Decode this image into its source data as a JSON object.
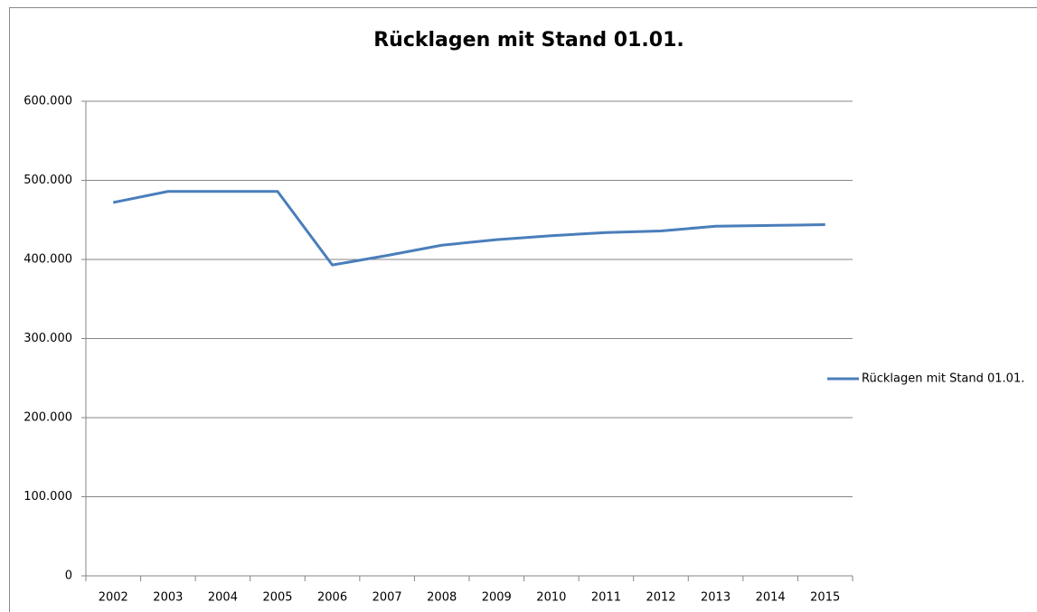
{
  "chart_data": {
    "type": "line",
    "title": "Rücklagen mit Stand 01.01.",
    "categories": [
      "2002",
      "2003",
      "2004",
      "2005",
      "2006",
      "2007",
      "2008",
      "2009",
      "2010",
      "2011",
      "2012",
      "2013",
      "2014",
      "2015"
    ],
    "series": [
      {
        "name": "Rücklagen mit Stand 01.01.",
        "color": "#4a7ebb",
        "values": [
          472000,
          486000,
          486000,
          486000,
          393000,
          405000,
          418000,
          425000,
          430000,
          434000,
          436000,
          442000,
          443000,
          444000
        ]
      }
    ],
    "ylim": [
      0,
      600000
    ],
    "yticks": [
      0,
      {
        "value": 100000,
        "label": "100.000"
      },
      {
        "value": 200000,
        "label": "200.000"
      },
      {
        "value": 300000,
        "label": "300.000"
      },
      {
        "value": 400000,
        "label": "400.000"
      },
      {
        "value": 500000,
        "label": "500.000"
      },
      {
        "value": 600000,
        "label": "600.000"
      }
    ],
    "grid": true,
    "legend": "right"
  }
}
